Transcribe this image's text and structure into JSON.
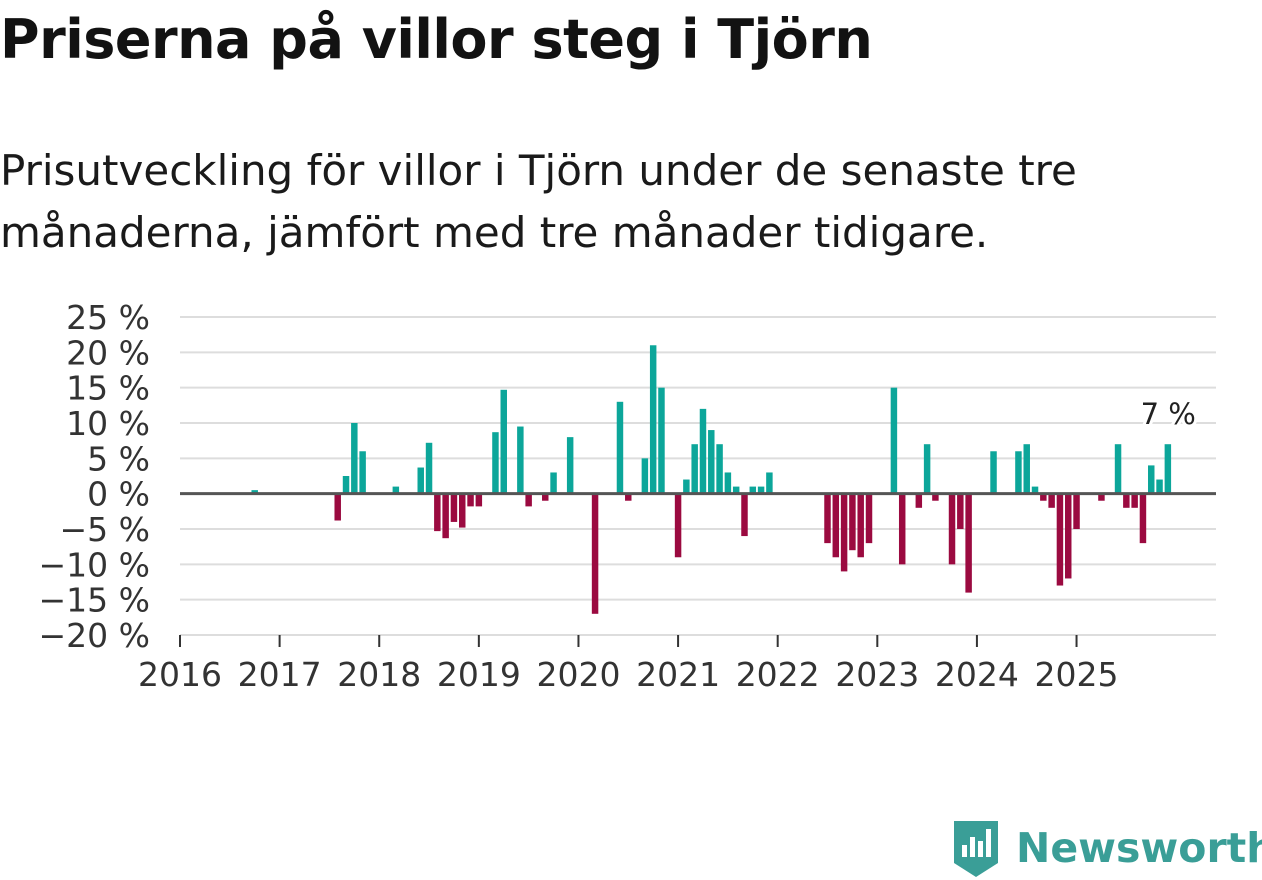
{
  "title": "Priserna på villor steg i Tjörn",
  "subtitle": "Prisutveckling för villor i Tjörn under de senaste tre månaderna, jämfört med tre månader tidigare.",
  "brand": {
    "name": "Newsworthy",
    "icon": "newsworthy-logo-icon"
  },
  "colors": {
    "positive": "#0ca69a",
    "negative": "#9b0a40",
    "grid": "#dddddd",
    "zero_line": "#555555",
    "brand": "#3a9e97"
  },
  "chart_data": {
    "type": "bar",
    "title": "Priserna på villor steg i Tjörn",
    "xlabel": "",
    "ylabel": "",
    "ylim": [
      -20,
      25
    ],
    "xlim": [
      2016,
      2026.4
    ],
    "y_ticks": [
      25,
      20,
      15,
      10,
      5,
      0,
      -5,
      -10,
      -15,
      -20
    ],
    "y_tick_labels": [
      "25 %",
      "20 %",
      "15 %",
      "10 %",
      "5 %",
      "0 %",
      "−5 %",
      "−10 %",
      "−15 %",
      "−20 %"
    ],
    "x_ticks": [
      2016,
      2017,
      2018,
      2019,
      2020,
      2021,
      2022,
      2023,
      2024,
      2025
    ],
    "x_tick_labels": [
      "2016",
      "2017",
      "2018",
      "2019",
      "2020",
      "2021",
      "2022",
      "2023",
      "2024",
      "2025"
    ],
    "annotation": {
      "text": "7 %",
      "t": 2025.9167
    },
    "series": [
      {
        "name": "Prisutveckling",
        "points": [
          {
            "t": 2016.75,
            "v": 0.5
          },
          {
            "t": 2017.5833,
            "v": -3.8
          },
          {
            "t": 2017.6667,
            "v": 2.5
          },
          {
            "t": 2017.75,
            "v": 10
          },
          {
            "t": 2017.8333,
            "v": 6
          },
          {
            "t": 2018.1667,
            "v": 1
          },
          {
            "t": 2018.4167,
            "v": 3.7
          },
          {
            "t": 2018.5,
            "v": 7.2
          },
          {
            "t": 2018.5833,
            "v": -5.3
          },
          {
            "t": 2018.6667,
            "v": -6.3
          },
          {
            "t": 2018.75,
            "v": -4
          },
          {
            "t": 2018.8333,
            "v": -4.8
          },
          {
            "t": 2018.9167,
            "v": -1.8
          },
          {
            "t": 2019.0,
            "v": -1.8
          },
          {
            "t": 2019.1667,
            "v": 8.7
          },
          {
            "t": 2019.25,
            "v": 14.7
          },
          {
            "t": 2019.4167,
            "v": 9.5
          },
          {
            "t": 2019.5,
            "v": -1.8
          },
          {
            "t": 2019.6667,
            "v": -1
          },
          {
            "t": 2019.75,
            "v": 3
          },
          {
            "t": 2019.9167,
            "v": 8
          },
          {
            "t": 2020.1667,
            "v": -17
          },
          {
            "t": 2020.4167,
            "v": 13
          },
          {
            "t": 2020.5,
            "v": -1
          },
          {
            "t": 2020.6667,
            "v": 5
          },
          {
            "t": 2020.75,
            "v": 21
          },
          {
            "t": 2020.8333,
            "v": 15
          },
          {
            "t": 2021.0,
            "v": -9
          },
          {
            "t": 2021.0833,
            "v": 2
          },
          {
            "t": 2021.1667,
            "v": 7
          },
          {
            "t": 2021.25,
            "v": 12
          },
          {
            "t": 2021.3333,
            "v": 9
          },
          {
            "t": 2021.4167,
            "v": 7
          },
          {
            "t": 2021.5,
            "v": 3
          },
          {
            "t": 2021.5833,
            "v": 1
          },
          {
            "t": 2021.6667,
            "v": -6
          },
          {
            "t": 2021.75,
            "v": 1
          },
          {
            "t": 2021.8333,
            "v": 1
          },
          {
            "t": 2021.9167,
            "v": 3
          },
          {
            "t": 2022.5,
            "v": -7
          },
          {
            "t": 2022.5833,
            "v": -9
          },
          {
            "t": 2022.6667,
            "v": -11
          },
          {
            "t": 2022.75,
            "v": -8
          },
          {
            "t": 2022.8333,
            "v": -9
          },
          {
            "t": 2022.9167,
            "v": -7
          },
          {
            "t": 2023.1667,
            "v": 15
          },
          {
            "t": 2023.25,
            "v": -10
          },
          {
            "t": 2023.4167,
            "v": -2
          },
          {
            "t": 2023.5,
            "v": 7
          },
          {
            "t": 2023.5833,
            "v": -1
          },
          {
            "t": 2023.75,
            "v": -10
          },
          {
            "t": 2023.8333,
            "v": -5
          },
          {
            "t": 2023.9167,
            "v": -14
          },
          {
            "t": 2024.1667,
            "v": 6
          },
          {
            "t": 2024.4167,
            "v": 6
          },
          {
            "t": 2024.5,
            "v": 7
          },
          {
            "t": 2024.5833,
            "v": 1
          },
          {
            "t": 2024.6667,
            "v": -1
          },
          {
            "t": 2024.75,
            "v": -2
          },
          {
            "t": 2024.8333,
            "v": -13
          },
          {
            "t": 2024.9167,
            "v": -12
          },
          {
            "t": 2025.0,
            "v": -5
          },
          {
            "t": 2025.25,
            "v": -1
          },
          {
            "t": 2025.4167,
            "v": 7
          },
          {
            "t": 2025.5,
            "v": -2
          },
          {
            "t": 2025.5833,
            "v": -2
          },
          {
            "t": 2025.6667,
            "v": -7
          },
          {
            "t": 2025.75,
            "v": 4
          },
          {
            "t": 2025.8333,
            "v": 2
          },
          {
            "t": 2025.9167,
            "v": 7
          }
        ]
      }
    ]
  }
}
